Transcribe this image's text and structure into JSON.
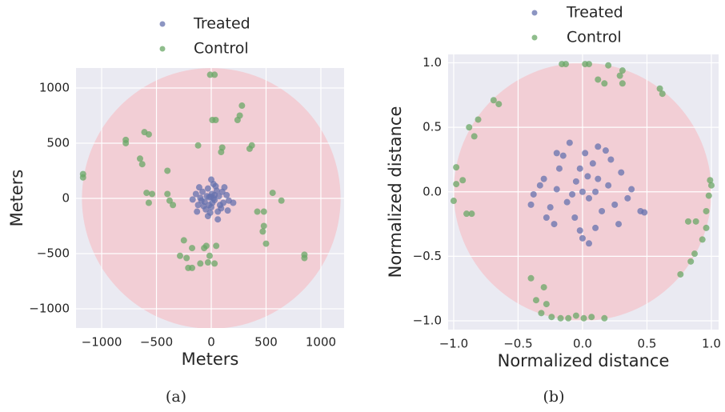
{
  "chart_data": [
    {
      "type": "scatter",
      "caption": "(a)",
      "xlabel": "Meters",
      "ylabel": "Meters",
      "xlim": [
        -1234,
        1212
      ],
      "ylim": [
        -1174,
        1181
      ],
      "xticks": [
        {
          "value": -1000,
          "label": "−1000"
        },
        {
          "value": -500,
          "label": "−500"
        },
        0,
        500,
        1000
      ],
      "yticks": [
        {
          "value": -1000,
          "label": "−1000"
        },
        {
          "value": -500,
          "label": "−500"
        },
        0,
        500,
        1000
      ],
      "grid": true,
      "legend": "top",
      "circle": {
        "radius": 1180,
        "color": "#f3c9d0"
      },
      "series": [
        {
          "name": "Treated",
          "color": "#6572ad",
          "x": [
            -20,
            30,
            5,
            -60,
            70,
            -100,
            110,
            0,
            -30,
            50,
            -80,
            90,
            -120,
            140,
            20,
            -10,
            60,
            -140,
            160,
            -50,
            40,
            -90,
            100,
            -40,
            10,
            80,
            -70,
            30,
            -20,
            120,
            -110,
            0,
            -170,
            200,
            60,
            -30,
            150,
            -130,
            20,
            -5
          ],
          "values": [
            10,
            -15,
            40,
            -30,
            20,
            5,
            -40,
            -80,
            90,
            70,
            60,
            -90,
            -60,
            30,
            130,
            -130,
            -120,
            40,
            -20,
            -100,
            110,
            -20,
            60,
            20,
            -40,
            -60,
            -70,
            30,
            -60,
            100,
            100,
            170,
            -10,
            -40,
            -190,
            -160,
            -110,
            -120,
            0,
            15
          ]
        },
        {
          "name": "Control",
          "color": "#6aa766",
          "x": [
            -10,
            30,
            260,
            240,
            280,
            40,
            10,
            100,
            90,
            -120,
            370,
            350,
            -610,
            -570,
            -780,
            -780,
            -650,
            -630,
            -400,
            -1170,
            -1170,
            -590,
            -540,
            -400,
            -380,
            -350,
            -570,
            560,
            640,
            420,
            480,
            480,
            470,
            500,
            850,
            850,
            -250,
            -175,
            -225,
            -210,
            -65,
            -15,
            -30,
            30,
            -285,
            -100,
            -175,
            -45,
            45
          ],
          "values": [
            1120,
            1120,
            750,
            710,
            840,
            710,
            710,
            460,
            420,
            480,
            480,
            450,
            600,
            580,
            530,
            500,
            360,
            310,
            250,
            220,
            190,
            50,
            40,
            40,
            -20,
            -60,
            -40,
            50,
            -20,
            -120,
            -120,
            -250,
            -300,
            -410,
            -510,
            -540,
            -380,
            -450,
            -540,
            -630,
            -450,
            -520,
            -580,
            -590,
            -520,
            -590,
            -630,
            -430,
            -430
          ]
        }
      ]
    },
    {
      "type": "scatter",
      "caption": "(b)",
      "xlabel": "Normalized distance",
      "ylabel": "Normalized distance",
      "xlim": [
        -1.043,
        1.056
      ],
      "ylim": [
        -1.068,
        1.065
      ],
      "xticks": [
        {
          "value": -1,
          "label": "−1.0"
        },
        {
          "value": -0.5,
          "label": "−0.5"
        },
        {
          "value": 0,
          "label": "0.0"
        },
        0.5,
        {
          "value": 1,
          "label": "1.0"
        }
      ],
      "yticks": [
        {
          "value": -1,
          "label": "−1.0"
        },
        {
          "value": -0.5,
          "label": "−0.5"
        },
        {
          "value": 0,
          "label": "0.0"
        },
        0.5,
        {
          "value": 1,
          "label": "1.0"
        }
      ],
      "grid": true,
      "legend": "top",
      "circle": {
        "radius": 1,
        "color": "#f3c9d0"
      },
      "series": [
        {
          "name": "Treated",
          "color": "#6572ad",
          "x": [
            0,
            0.05,
            -0.05,
            0.12,
            -0.12,
            0.2,
            -0.2,
            0.08,
            -0.06,
            0.15,
            -0.18,
            0.25,
            -0.25,
            0.02,
            -0.02,
            0.3,
            -0.3,
            0.1,
            -0.15,
            0.22,
            -0.22,
            0.35,
            -0.38,
            0.12,
            -0.1,
            0,
            0.05,
            -0.28,
            0.28,
            0.45,
            0.48,
            -0.4,
            -0.33,
            0.1,
            -0.08,
            0.04,
            0.18,
            -0.2,
            0.38,
            -0.02
          ],
          "values": [
            0,
            -0.05,
            0.08,
            0.1,
            -0.08,
            0.05,
            0.02,
            0.22,
            -0.2,
            -0.15,
            0.18,
            -0.1,
            -0.12,
            0.3,
            -0.3,
            0.15,
            0.1,
            -0.28,
            0.28,
            0.25,
            -0.25,
            -0.05,
            -0.02,
            0.35,
            0.38,
            -0.36,
            -0.4,
            -0.2,
            -0.25,
            -0.15,
            -0.16,
            -0.1,
            0.05,
            0,
            -0.02,
            0.12,
            0.32,
            0.3,
            0.02,
            0.18
          ]
        },
        {
          "name": "Control",
          "color": "#6aa766",
          "x": [
            0.02,
            0.05,
            -0.13,
            -0.16,
            0.2,
            0.12,
            0.17,
            0.31,
            0.31,
            0.29,
            0.6,
            0.62,
            0.99,
            1.0,
            0.98,
            0.96,
            0.88,
            0.82,
            0.96,
            0.93,
            0.87,
            0.84,
            0.76,
            -0.17,
            -0.11,
            -0.05,
            0.01,
            0.07,
            0.17,
            -0.24,
            -0.32,
            -0.28,
            -0.36,
            -0.4,
            -0.3,
            -1.0,
            -0.9,
            -0.86,
            -0.98,
            -0.93,
            -0.98,
            -0.84,
            -0.81,
            -0.88,
            -0.69,
            -0.65
          ],
          "values": [
            0.99,
            0.99,
            0.99,
            0.99,
            0.98,
            0.87,
            0.84,
            0.94,
            0.84,
            0.9,
            0.8,
            0.76,
            0.09,
            0.05,
            -0.03,
            -0.15,
            -0.23,
            -0.23,
            -0.28,
            -0.37,
            -0.48,
            -0.54,
            -0.64,
            -0.98,
            -0.98,
            -0.96,
            -0.98,
            -0.97,
            -0.98,
            -0.97,
            -0.94,
            -0.87,
            -0.84,
            -0.67,
            -0.74,
            -0.07,
            -0.17,
            -0.17,
            0.06,
            0.09,
            0.19,
            0.43,
            0.56,
            0.5,
            0.71,
            0.68
          ]
        }
      ]
    }
  ]
}
